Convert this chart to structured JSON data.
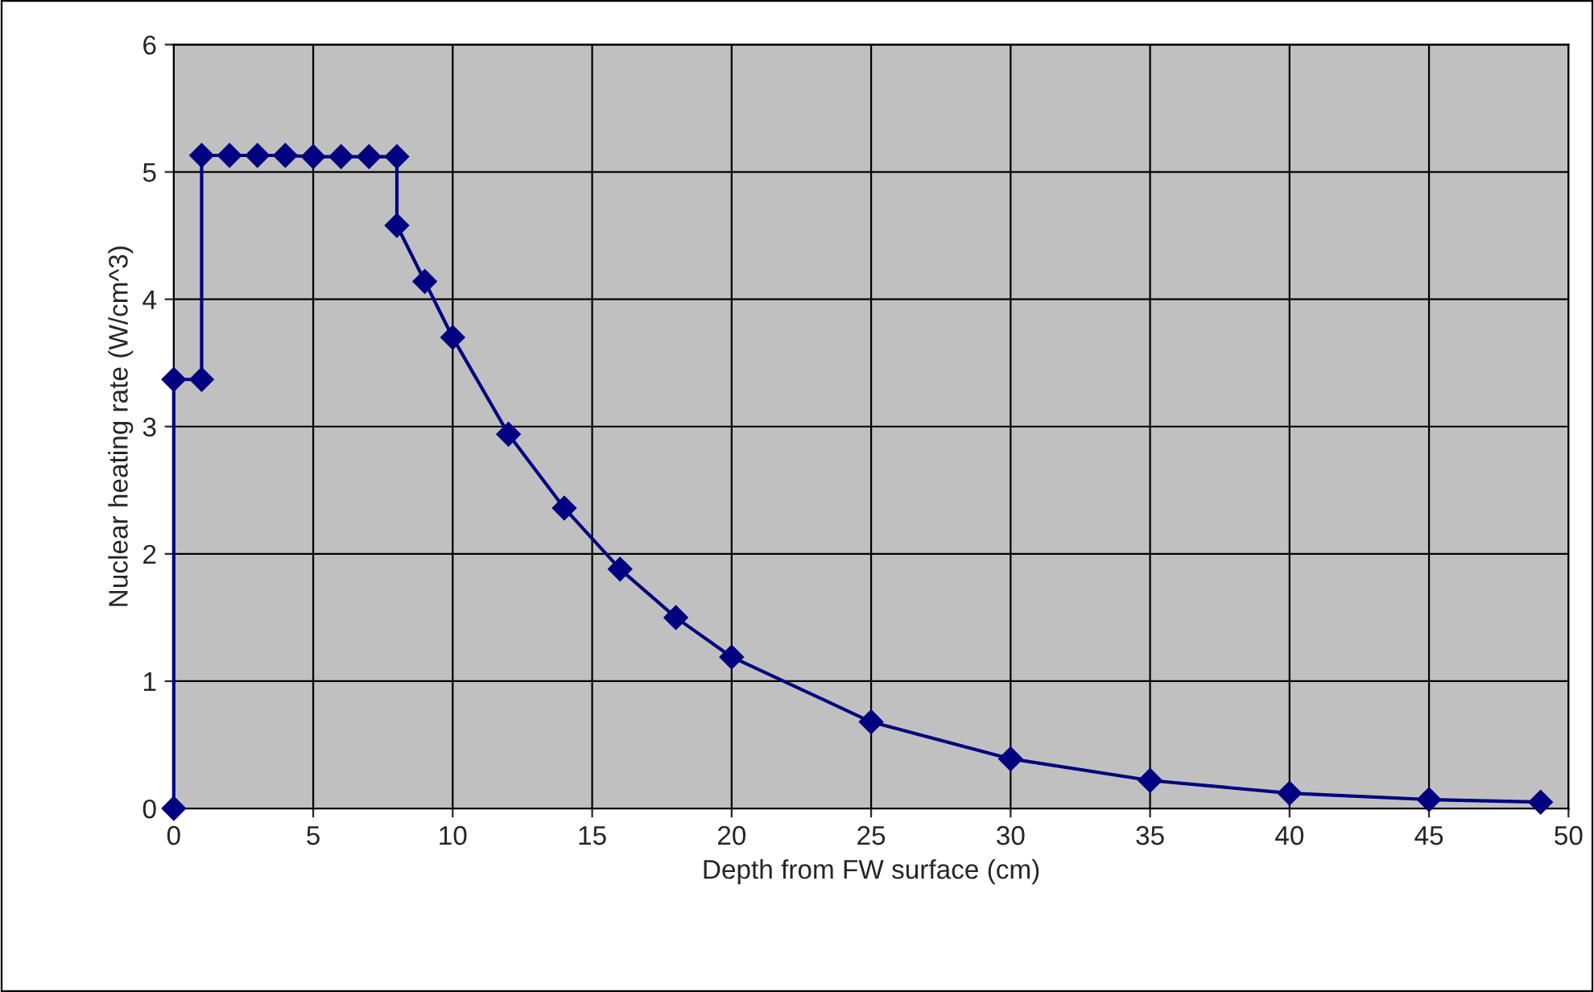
{
  "chart_data": {
    "type": "line",
    "xlabel": "Depth from FW surface (cm)",
    "ylabel": "Nuclear heating rate (W/cm^3)",
    "series": [
      {
        "color": "#000080",
        "x": [
          0,
          0,
          1,
          1,
          2,
          3,
          4,
          5,
          6,
          7,
          8,
          8,
          9,
          10,
          12,
          14,
          16,
          18,
          20,
          25,
          30,
          35,
          40,
          45,
          49
        ],
        "values": [
          0,
          3.37,
          3.37,
          5.13,
          5.13,
          5.13,
          5.13,
          5.12,
          5.12,
          5.12,
          5.12,
          4.58,
          4.14,
          3.7,
          2.94,
          2.36,
          1.88,
          1.5,
          1.19,
          0.68,
          0.39,
          0.22,
          0.12,
          0.07,
          0.05
        ]
      }
    ],
    "xlim": [
      0,
      50
    ],
    "ylim": [
      0,
      6
    ],
    "xticks": [
      0,
      5,
      10,
      15,
      20,
      25,
      30,
      35,
      40,
      45,
      50
    ],
    "yticks": [
      0,
      1,
      2,
      3,
      4,
      5,
      6
    ],
    "grid": true,
    "marker": "diamond",
    "line_style": "solid"
  }
}
